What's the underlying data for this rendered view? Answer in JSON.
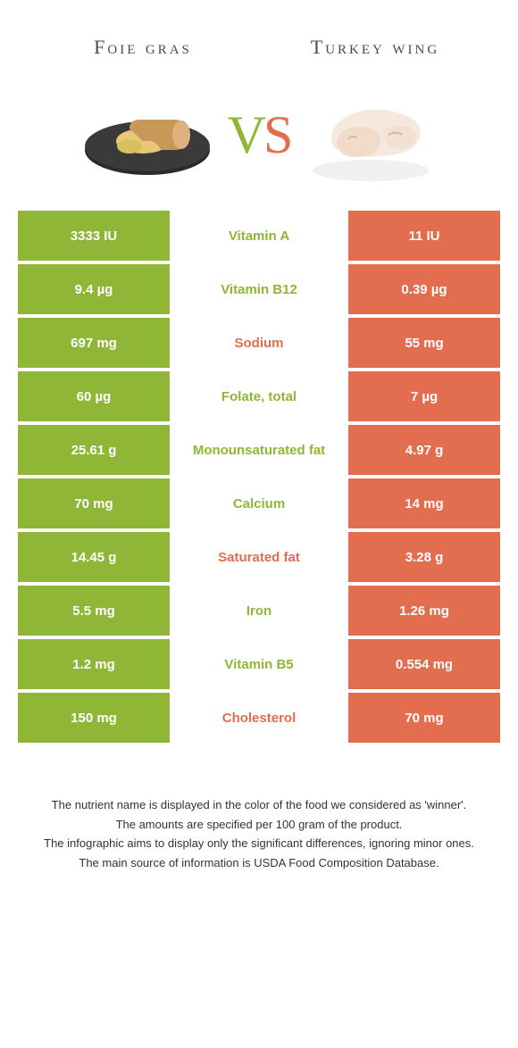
{
  "header": {
    "left_title": "Foie gras",
    "right_title": "Turkey wing",
    "vs_v": "V",
    "vs_s": "S"
  },
  "colors": {
    "green": "#8fb636",
    "orange": "#e36d4f",
    "white": "#ffffff",
    "text_dark": "#4a4a4a"
  },
  "rows": [
    {
      "left": "3333 IU",
      "label": "Vitamin A",
      "right": "11 IU",
      "winner": "green"
    },
    {
      "left": "9.4 µg",
      "label": "Vitamin B12",
      "right": "0.39 µg",
      "winner": "green"
    },
    {
      "left": "697 mg",
      "label": "Sodium",
      "right": "55 mg",
      "winner": "orange"
    },
    {
      "left": "60 µg",
      "label": "Folate, total",
      "right": "7 µg",
      "winner": "green"
    },
    {
      "left": "25.61 g",
      "label": "Monounsaturated fat",
      "right": "4.97 g",
      "winner": "green"
    },
    {
      "left": "70 mg",
      "label": "Calcium",
      "right": "14 mg",
      "winner": "green"
    },
    {
      "left": "14.45 g",
      "label": "Saturated fat",
      "right": "3.28 g",
      "winner": "orange"
    },
    {
      "left": "5.5 mg",
      "label": "Iron",
      "right": "1.26 mg",
      "winner": "green"
    },
    {
      "left": "1.2 mg",
      "label": "Vitamin B5",
      "right": "0.554 mg",
      "winner": "green"
    },
    {
      "left": "150 mg",
      "label": "Cholesterol",
      "right": "70 mg",
      "winner": "orange"
    }
  ],
  "footer": {
    "line1": "The nutrient name is displayed in the color of the food we considered as 'winner'.",
    "line2": "The amounts are specified per 100 gram of the product.",
    "line3": "The infographic aims to display only the significant differences, ignoring minor ones.",
    "line4": "The main source of information is USDA Food Composition Database."
  }
}
